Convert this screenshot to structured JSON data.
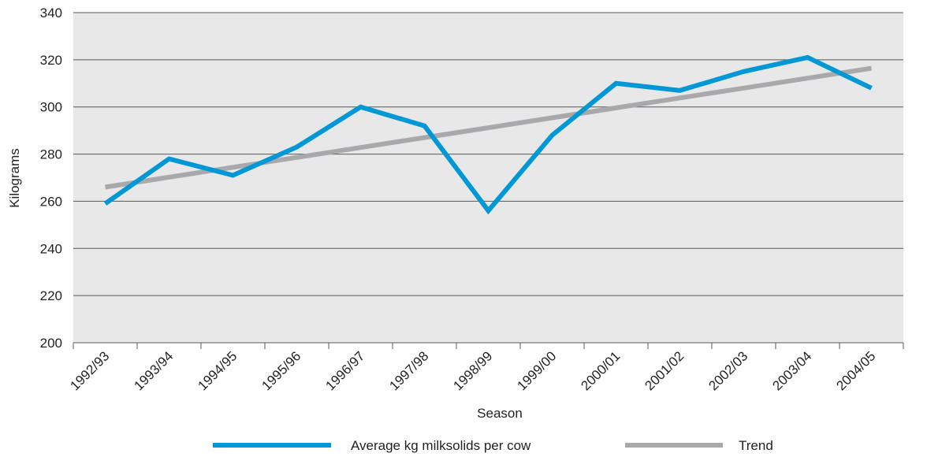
{
  "chart_data": {
    "type": "line",
    "title": "",
    "xlabel": "Season",
    "ylabel": "Kilograms",
    "categories": [
      "1992/93",
      "1993/94",
      "1994/95",
      "1995/96",
      "1996/97",
      "1997/98",
      "1998/99",
      "1999/00",
      "2000/01",
      "2001/02",
      "2002/03",
      "2003/04",
      "2004/05"
    ],
    "ylim": [
      200,
      340
    ],
    "yticks": [
      "200",
      "220",
      "240",
      "260",
      "280",
      "300",
      "320",
      "340"
    ],
    "grid": "horizontal",
    "legend_position": "bottom",
    "series": [
      {
        "name": "Average kg milksolids per cow",
        "color": "#0098d4",
        "values": [
          259,
          278,
          271,
          283,
          300,
          292,
          256,
          288,
          310,
          307,
          315,
          321,
          308
        ]
      },
      {
        "name": "Trend",
        "color": "#a9a9ab",
        "values": [
          266,
          270.2,
          274.4,
          278.6,
          282.8,
          287,
          291.2,
          295.4,
          299.6,
          303.8,
          308,
          312.2,
          316.4
        ]
      }
    ],
    "plot_background": "#e8e8e9",
    "gridline_color": "#58585a"
  }
}
